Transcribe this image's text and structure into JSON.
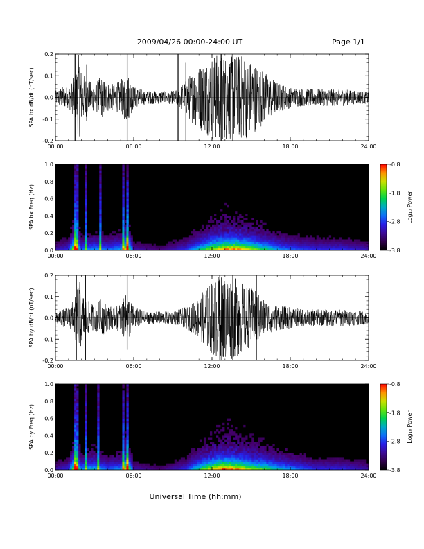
{
  "header": {
    "date_title": "2009/04/26  00:00-24:00 UT",
    "page_label": "Page 1/1"
  },
  "x_axis_title": "Universal Time (hh:mm)",
  "chart_data": [
    {
      "type": "line",
      "ylabel": "SPA bx dB/dt (nT/sec)",
      "xlim_hours": [
        0,
        24
      ],
      "ylim": [
        -0.2,
        0.2
      ],
      "x_ticks": [
        "00:00",
        "06:00",
        "12:00",
        "18:00",
        "24:00"
      ],
      "y_ticks": [
        "-0.2",
        "-0.1",
        "0.0",
        "0.1",
        "0.2"
      ],
      "envelope": {
        "hours": [
          0,
          0.5,
          1.0,
          1.5,
          1.8,
          2.0,
          2.5,
          3.0,
          3.5,
          4.0,
          4.5,
          5.0,
          5.5,
          6.0,
          7.0,
          8.0,
          9.0,
          9.5,
          10.0,
          10.5,
          11.0,
          11.5,
          12.0,
          12.5,
          13.0,
          13.5,
          14.0,
          14.5,
          15.0,
          15.5,
          16.0,
          16.5,
          17.0,
          18.0,
          19.0,
          20.0,
          21.0,
          22.0,
          23.0,
          24.0
        ],
        "amplitude": [
          0.03,
          0.05,
          0.05,
          0.1,
          0.2,
          0.12,
          0.08,
          0.06,
          0.1,
          0.07,
          0.06,
          0.08,
          0.12,
          0.05,
          0.03,
          0.03,
          0.03,
          0.05,
          0.08,
          0.12,
          0.15,
          0.17,
          0.2,
          0.2,
          0.2,
          0.2,
          0.2,
          0.2,
          0.17,
          0.15,
          0.12,
          0.1,
          0.07,
          0.05,
          0.04,
          0.04,
          0.04,
          0.04,
          0.03,
          0.03
        ]
      },
      "spikes": [
        {
          "hour": 1.5,
          "min": -0.2,
          "max": 0.2
        },
        {
          "hour": 2.4,
          "min": -0.11,
          "max": 0.15
        },
        {
          "hour": 5.5,
          "min": -0.2,
          "max": 0.2
        },
        {
          "hour": 9.4,
          "min": -0.2,
          "max": 0.2
        },
        {
          "hour": 10.0,
          "min": -0.2,
          "max": 0.16
        },
        {
          "hour": 12.7,
          "min": -0.2,
          "max": 0.2
        },
        {
          "hour": 13.6,
          "min": -0.2,
          "max": 0.2
        }
      ]
    },
    {
      "type": "heatmap",
      "ylabel": "SPA bx Freq (Hz)",
      "xlim_hours": [
        0,
        24
      ],
      "ylim": [
        0,
        1.0
      ],
      "x_ticks": [
        "00:00",
        "06:00",
        "12:00",
        "18:00",
        "24:00"
      ],
      "y_ticks": [
        "0.0",
        "0.2",
        "0.4",
        "0.6",
        "0.8",
        "1.0"
      ],
      "colorbar": {
        "label": "Log₁₀ Power",
        "ticks": [
          "-0.8",
          "-1.8",
          "-2.8",
          "-3.8"
        ],
        "range": [
          -3.8,
          -0.8
        ]
      },
      "activity": {
        "hours": [
          0,
          1,
          1.5,
          2,
          3,
          4,
          5,
          5.5,
          6,
          8,
          10,
          11,
          12,
          13,
          14,
          15,
          16,
          17,
          18,
          20,
          22,
          24
        ],
        "level": [
          0.15,
          0.2,
          0.6,
          0.25,
          0.3,
          0.25,
          0.3,
          0.6,
          0.15,
          0.1,
          0.2,
          0.35,
          0.5,
          0.6,
          0.6,
          0.5,
          0.4,
          0.3,
          0.25,
          0.2,
          0.2,
          0.15
        ]
      },
      "vertical_streaks_hours": [
        1.5,
        1.7,
        2.3,
        3.4,
        5.2,
        5.5
      ]
    },
    {
      "type": "line",
      "ylabel": "SPA by dB/dt (nT/sec)",
      "xlim_hours": [
        0,
        24
      ],
      "ylim": [
        -0.2,
        0.2
      ],
      "x_ticks": [
        "00:00",
        "06:00",
        "12:00",
        "18:00",
        "24:00"
      ],
      "y_ticks": [
        "-0.2",
        "-0.1",
        "0.0",
        "0.1",
        "0.2"
      ],
      "envelope": {
        "hours": [
          0,
          0.5,
          1.0,
          1.5,
          1.8,
          2.0,
          2.5,
          3.0,
          3.5,
          4.0,
          4.5,
          5.0,
          5.5,
          6.0,
          7.0,
          8.0,
          9.0,
          9.5,
          10.0,
          10.5,
          11.0,
          11.5,
          12.0,
          12.5,
          13.0,
          13.5,
          14.0,
          14.5,
          15.0,
          15.5,
          16.0,
          16.5,
          17.0,
          18.0,
          19.0,
          20.0,
          21.0,
          22.0,
          23.0,
          24.0
        ],
        "amplitude": [
          0.03,
          0.04,
          0.05,
          0.1,
          0.2,
          0.12,
          0.08,
          0.06,
          0.09,
          0.06,
          0.05,
          0.07,
          0.12,
          0.05,
          0.03,
          0.03,
          0.03,
          0.04,
          0.05,
          0.07,
          0.1,
          0.14,
          0.17,
          0.2,
          0.2,
          0.2,
          0.18,
          0.16,
          0.14,
          0.12,
          0.09,
          0.07,
          0.06,
          0.05,
          0.04,
          0.04,
          0.04,
          0.04,
          0.035,
          0.03
        ]
      },
      "spikes": [
        {
          "hour": 1.6,
          "min": -0.2,
          "max": 0.2
        },
        {
          "hour": 2.3,
          "min": -0.2,
          "max": 0.2
        },
        {
          "hour": 5.5,
          "min": -0.15,
          "max": 0.2
        },
        {
          "hour": 12.6,
          "min": -0.2,
          "max": 0.2
        },
        {
          "hour": 13.6,
          "min": -0.2,
          "max": 0.2
        },
        {
          "hour": 15.4,
          "min": -0.2,
          "max": 0.2
        }
      ]
    },
    {
      "type": "heatmap",
      "ylabel": "SPA by Freq (Hz)",
      "xlim_hours": [
        0,
        24
      ],
      "ylim": [
        0,
        1.0
      ],
      "x_ticks": [
        "00:00",
        "06:00",
        "12:00",
        "18:00",
        "24:00"
      ],
      "y_ticks": [
        "0.0",
        "0.2",
        "0.4",
        "0.6",
        "0.8",
        "1.0"
      ],
      "colorbar": {
        "label": "Log₁₀ Power",
        "ticks": [
          "-0.8",
          "-1.8",
          "-2.8",
          "-3.8"
        ],
        "range": [
          -3.8,
          -0.8
        ]
      },
      "activity": {
        "hours": [
          0,
          1,
          1.5,
          2,
          3,
          4,
          5,
          5.5,
          6,
          8,
          10,
          11,
          12,
          13,
          14,
          15,
          16,
          17,
          18,
          20,
          22,
          24
        ],
        "level": [
          0.15,
          0.2,
          0.6,
          0.3,
          0.35,
          0.25,
          0.3,
          0.6,
          0.15,
          0.1,
          0.2,
          0.4,
          0.55,
          0.65,
          0.6,
          0.5,
          0.45,
          0.35,
          0.3,
          0.2,
          0.2,
          0.15
        ]
      },
      "vertical_streaks_hours": [
        1.5,
        1.7,
        2.3,
        3.3,
        5.2,
        5.5
      ]
    }
  ]
}
